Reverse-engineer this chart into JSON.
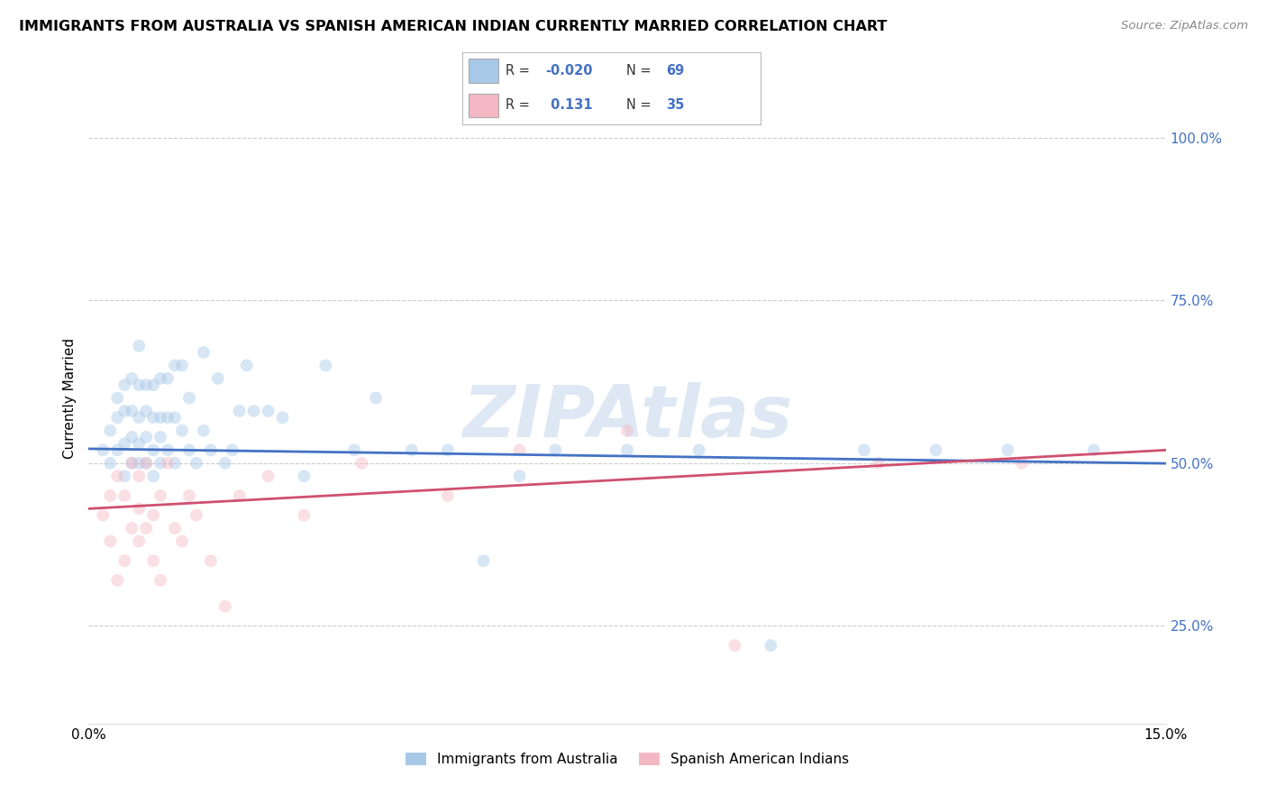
{
  "title": "IMMIGRANTS FROM AUSTRALIA VS SPANISH AMERICAN INDIAN CURRENTLY MARRIED CORRELATION CHART",
  "source": "Source: ZipAtlas.com",
  "ylabel": "Currently Married",
  "ytick_labels": [
    "100.0%",
    "75.0%",
    "50.0%",
    "25.0%"
  ],
  "ytick_values": [
    1.0,
    0.75,
    0.5,
    0.25
  ],
  "xlim": [
    0.0,
    0.15
  ],
  "ylim": [
    0.1,
    1.1
  ],
  "legend_label1": "Immigrants from Australia",
  "legend_label2": "Spanish American Indians",
  "blue_scatter_color": "#a8c8e8",
  "pink_scatter_color": "#f4b8c4",
  "blue_line_color": "#4472c4",
  "pink_line_color": "#d05070",
  "r_value_color": "#4472c4",
  "n_value_color": "#4472c4",
  "watermark_color": "#d0dff0",
  "blue_r": -0.02,
  "blue_n": 69,
  "pink_r": 0.131,
  "pink_n": 35,
  "grid_color": "#cccccc",
  "background_color": "#ffffff",
  "marker_size": 100,
  "marker_alpha": 0.45,
  "blue_points_x": [
    0.002,
    0.003,
    0.003,
    0.004,
    0.004,
    0.004,
    0.005,
    0.005,
    0.005,
    0.005,
    0.006,
    0.006,
    0.006,
    0.006,
    0.007,
    0.007,
    0.007,
    0.007,
    0.007,
    0.008,
    0.008,
    0.008,
    0.008,
    0.009,
    0.009,
    0.009,
    0.009,
    0.01,
    0.01,
    0.01,
    0.01,
    0.011,
    0.011,
    0.011,
    0.012,
    0.012,
    0.012,
    0.013,
    0.013,
    0.014,
    0.014,
    0.015,
    0.016,
    0.016,
    0.017,
    0.018,
    0.019,
    0.02,
    0.021,
    0.022,
    0.023,
    0.025,
    0.027,
    0.03,
    0.033,
    0.037,
    0.04,
    0.045,
    0.05,
    0.055,
    0.06,
    0.065,
    0.075,
    0.085,
    0.095,
    0.108,
    0.118,
    0.128,
    0.14
  ],
  "blue_points_y": [
    0.52,
    0.5,
    0.55,
    0.52,
    0.57,
    0.6,
    0.48,
    0.53,
    0.58,
    0.62,
    0.5,
    0.54,
    0.58,
    0.63,
    0.5,
    0.53,
    0.57,
    0.62,
    0.68,
    0.5,
    0.54,
    0.58,
    0.62,
    0.48,
    0.52,
    0.57,
    0.62,
    0.5,
    0.54,
    0.57,
    0.63,
    0.52,
    0.57,
    0.63,
    0.5,
    0.57,
    0.65,
    0.55,
    0.65,
    0.52,
    0.6,
    0.5,
    0.55,
    0.67,
    0.52,
    0.63,
    0.5,
    0.52,
    0.58,
    0.65,
    0.58,
    0.58,
    0.57,
    0.48,
    0.65,
    0.52,
    0.6,
    0.52,
    0.52,
    0.35,
    0.48,
    0.52,
    0.52,
    0.52,
    0.22,
    0.52,
    0.52,
    0.52,
    0.52
  ],
  "pink_points_x": [
    0.002,
    0.003,
    0.003,
    0.004,
    0.004,
    0.005,
    0.005,
    0.006,
    0.006,
    0.007,
    0.007,
    0.007,
    0.008,
    0.008,
    0.009,
    0.009,
    0.01,
    0.01,
    0.011,
    0.012,
    0.013,
    0.014,
    0.015,
    0.017,
    0.019,
    0.021,
    0.025,
    0.03,
    0.038,
    0.05,
    0.06,
    0.075,
    0.09,
    0.11,
    0.13
  ],
  "pink_points_y": [
    0.42,
    0.38,
    0.45,
    0.32,
    0.48,
    0.35,
    0.45,
    0.4,
    0.5,
    0.43,
    0.38,
    0.48,
    0.4,
    0.5,
    0.42,
    0.35,
    0.45,
    0.32,
    0.5,
    0.4,
    0.38,
    0.45,
    0.42,
    0.35,
    0.28,
    0.45,
    0.48,
    0.42,
    0.5,
    0.45,
    0.52,
    0.55,
    0.22,
    0.5,
    0.5
  ]
}
